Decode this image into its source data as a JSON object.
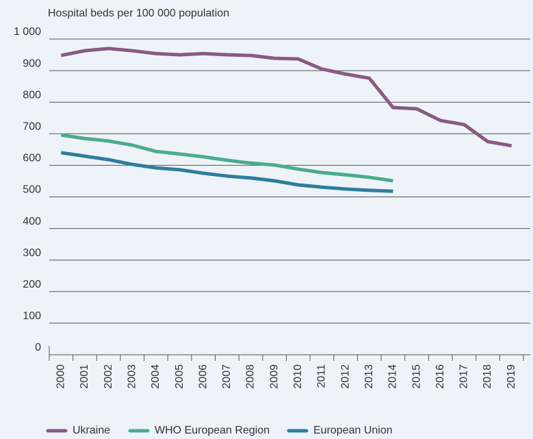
{
  "chart_data": {
    "type": "line",
    "y_label": "Hospital beds per 100 000 population",
    "categories": [
      "2000",
      "2001",
      "2002",
      "2003",
      "2004",
      "2005",
      "2006",
      "2007",
      "2008",
      "2009",
      "2010",
      "2011",
      "2012",
      "2013",
      "2014",
      "2015",
      "2016",
      "2017",
      "2018",
      "2019"
    ],
    "series": [
      {
        "name": "Ukraine",
        "color": "#8a5a80",
        "values": [
          948,
          963,
          970,
          963,
          954,
          950,
          954,
          950,
          948,
          939,
          937,
          905,
          889,
          876,
          783,
          779,
          742,
          729,
          675,
          662
        ]
      },
      {
        "name": "WHO European Region",
        "color": "#4aab8f",
        "values": [
          696,
          685,
          677,
          664,
          644,
          636,
          627,
          616,
          607,
          601,
          588,
          577,
          570,
          562,
          551,
          null,
          null,
          null,
          null,
          null
        ]
      },
      {
        "name": "European Union",
        "color": "#2e7d9e",
        "values": [
          640,
          629,
          618,
          603,
          592,
          586,
          575,
          566,
          560,
          551,
          538,
          531,
          525,
          521,
          518,
          null,
          null,
          null,
          null,
          null
        ]
      }
    ],
    "ylim": [
      0,
      1000
    ],
    "yticks": [
      0,
      100,
      200,
      300,
      400,
      500,
      600,
      700,
      800,
      900,
      {
        "value": 1000,
        "label": "1 000"
      }
    ],
    "grid": true
  }
}
